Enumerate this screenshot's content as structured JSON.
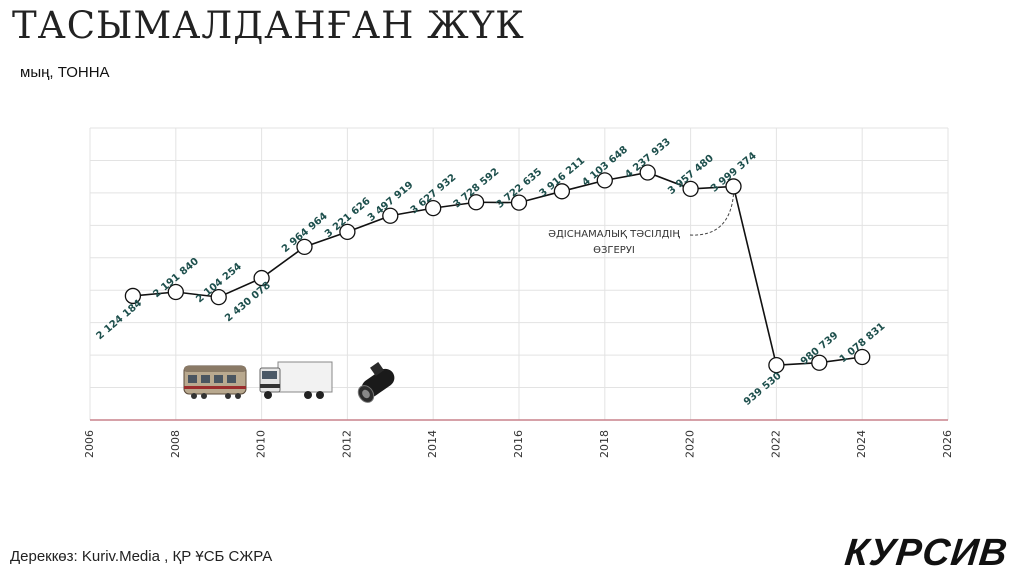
{
  "header": {
    "title": "ТАСЫМАЛДАНҒАН ЖҮК",
    "unit": "мың, ТОННА"
  },
  "footer": {
    "source": "Дереккөз: Kuriv.Media , ҚР ҰСБ СЖРА",
    "logo": "КУРСИВ"
  },
  "chart_data": {
    "type": "line",
    "x": [
      2007,
      2008,
      2009,
      2010,
      2011,
      2012,
      2013,
      2014,
      2015,
      2016,
      2017,
      2018,
      2019,
      2020,
      2021,
      2022,
      2023,
      2024
    ],
    "values": [
      2124184,
      2191840,
      2104254,
      2430078,
      2964964,
      3221626,
      3497919,
      3627932,
      3728592,
      3722635,
      3916211,
      4103648,
      4237933,
      3957480,
      3999374,
      939530,
      980739,
      1078831
    ],
    "labels": [
      "2 124 184",
      "2 191 840",
      "2 104 254",
      "2 430 078",
      "2 964 964",
      "3 221 626",
      "3 497 919",
      "3 627 932",
      "3 728 592",
      "3 722 635",
      "3 916 211",
      "4 103 648",
      "4 237 933",
      "3 957 480",
      "3 999 374",
      "939 530",
      "980 739",
      "1 078 831"
    ],
    "label_below": [
      true,
      false,
      false,
      true,
      false,
      false,
      false,
      false,
      false,
      false,
      false,
      false,
      false,
      false,
      false,
      true,
      false,
      false
    ],
    "xlim": [
      2006,
      2026
    ],
    "xticks": [
      2006,
      2008,
      2010,
      2012,
      2014,
      2016,
      2018,
      2020,
      2022,
      2024,
      2026
    ],
    "ylim": [
      0,
      5000000
    ],
    "grid": true,
    "annotation": {
      "lines": [
        "ӘДІСНАМАЛЫҚ ТӘСІЛДІҢ",
        "ӨЗГЕРУІ"
      ],
      "points_to_year": 2021
    },
    "colors": {
      "line": "#111111",
      "labels": "#1d4f4c",
      "baseline": "#c9828c",
      "grid": "#e3e3e3"
    }
  },
  "icons": [
    "train-icon",
    "truck-icon",
    "pipeline-icon"
  ]
}
